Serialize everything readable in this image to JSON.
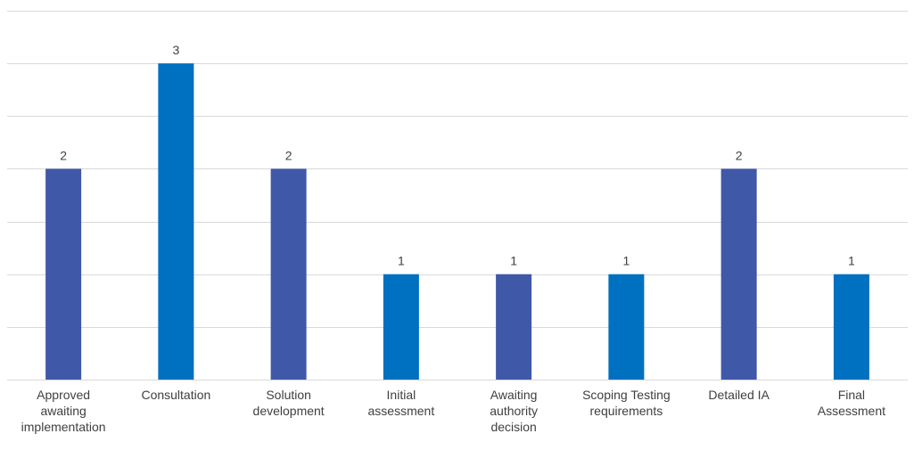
{
  "chart_data": {
    "type": "bar",
    "title": "",
    "xlabel": "",
    "ylabel": "",
    "ylim": [
      0,
      3.5
    ],
    "grid_step": 0.5,
    "grid": true,
    "legend": "none",
    "categories": [
      [
        "Approved",
        "awaiting",
        "implementation"
      ],
      [
        "Consultation"
      ],
      [
        "Solution",
        "development"
      ],
      [
        "Initial",
        "assessment"
      ],
      [
        "Awaiting",
        "authority",
        "decision"
      ],
      [
        "Scoping Testing",
        "requirements"
      ],
      [
        "Detailed IA"
      ],
      [
        "Final",
        "Assessment"
      ]
    ],
    "values": [
      2,
      3,
      2,
      1,
      1,
      1,
      2,
      1
    ],
    "bar_colors": [
      "#3F58A8",
      "#0070C0",
      "#3F58A8",
      "#0070C0",
      "#3F58A8",
      "#0070C0",
      "#3F58A8",
      "#0070C0"
    ],
    "gridline_color": "#D9D9D9",
    "text_color": "#404040"
  }
}
